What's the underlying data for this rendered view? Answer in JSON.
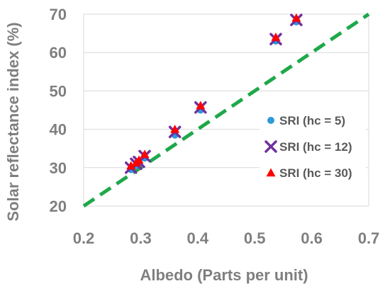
{
  "chart_data": {
    "type": "scatter",
    "xlabel": "Albedo (Parts per unit)",
    "ylabel": "Solar reflectance index (%)",
    "xlim": [
      0.2,
      0.7
    ],
    "ylim": [
      20,
      70
    ],
    "x_ticks": [
      "0.2",
      "0.3",
      "0.4",
      "0.5",
      "0.6",
      "0.7"
    ],
    "y_ticks": [
      "20",
      "30",
      "40",
      "50",
      "60",
      "70"
    ],
    "grid": "horizontal",
    "legend_position": "right",
    "series": [
      {
        "name": "SRI (hc = 5)",
        "marker": "circle",
        "color": "#2e9bd6",
        "points": [
          [
            0.283,
            29.5
          ],
          [
            0.292,
            30.5
          ],
          [
            0.297,
            31.0
          ],
          [
            0.307,
            32.5
          ],
          [
            0.36,
            38.5
          ],
          [
            0.405,
            45.0
          ],
          [
            0.537,
            63.0
          ],
          [
            0.573,
            68.0
          ]
        ]
      },
      {
        "name": "SRI (hc = 12)",
        "marker": "x",
        "color": "#7030a0",
        "points": [
          [
            0.283,
            30.0
          ],
          [
            0.292,
            31.0
          ],
          [
            0.297,
            31.5
          ],
          [
            0.307,
            33.0
          ],
          [
            0.36,
            39.3
          ],
          [
            0.405,
            45.7
          ],
          [
            0.537,
            63.5
          ],
          [
            0.573,
            68.5
          ]
        ]
      },
      {
        "name": "SRI (hc = 30)",
        "marker": "triangle",
        "color": "#ff0000",
        "points": [
          [
            0.283,
            30.5
          ],
          [
            0.292,
            31.3
          ],
          [
            0.297,
            32.0
          ],
          [
            0.307,
            33.5
          ],
          [
            0.36,
            40.0
          ],
          [
            0.405,
            46.2
          ],
          [
            0.537,
            64.0
          ],
          [
            0.573,
            69.0
          ]
        ]
      }
    ],
    "reference_line": {
      "style": "dashed",
      "color": "#1ea84a",
      "x": [
        0.2,
        0.7
      ],
      "y": [
        20,
        70
      ]
    }
  }
}
